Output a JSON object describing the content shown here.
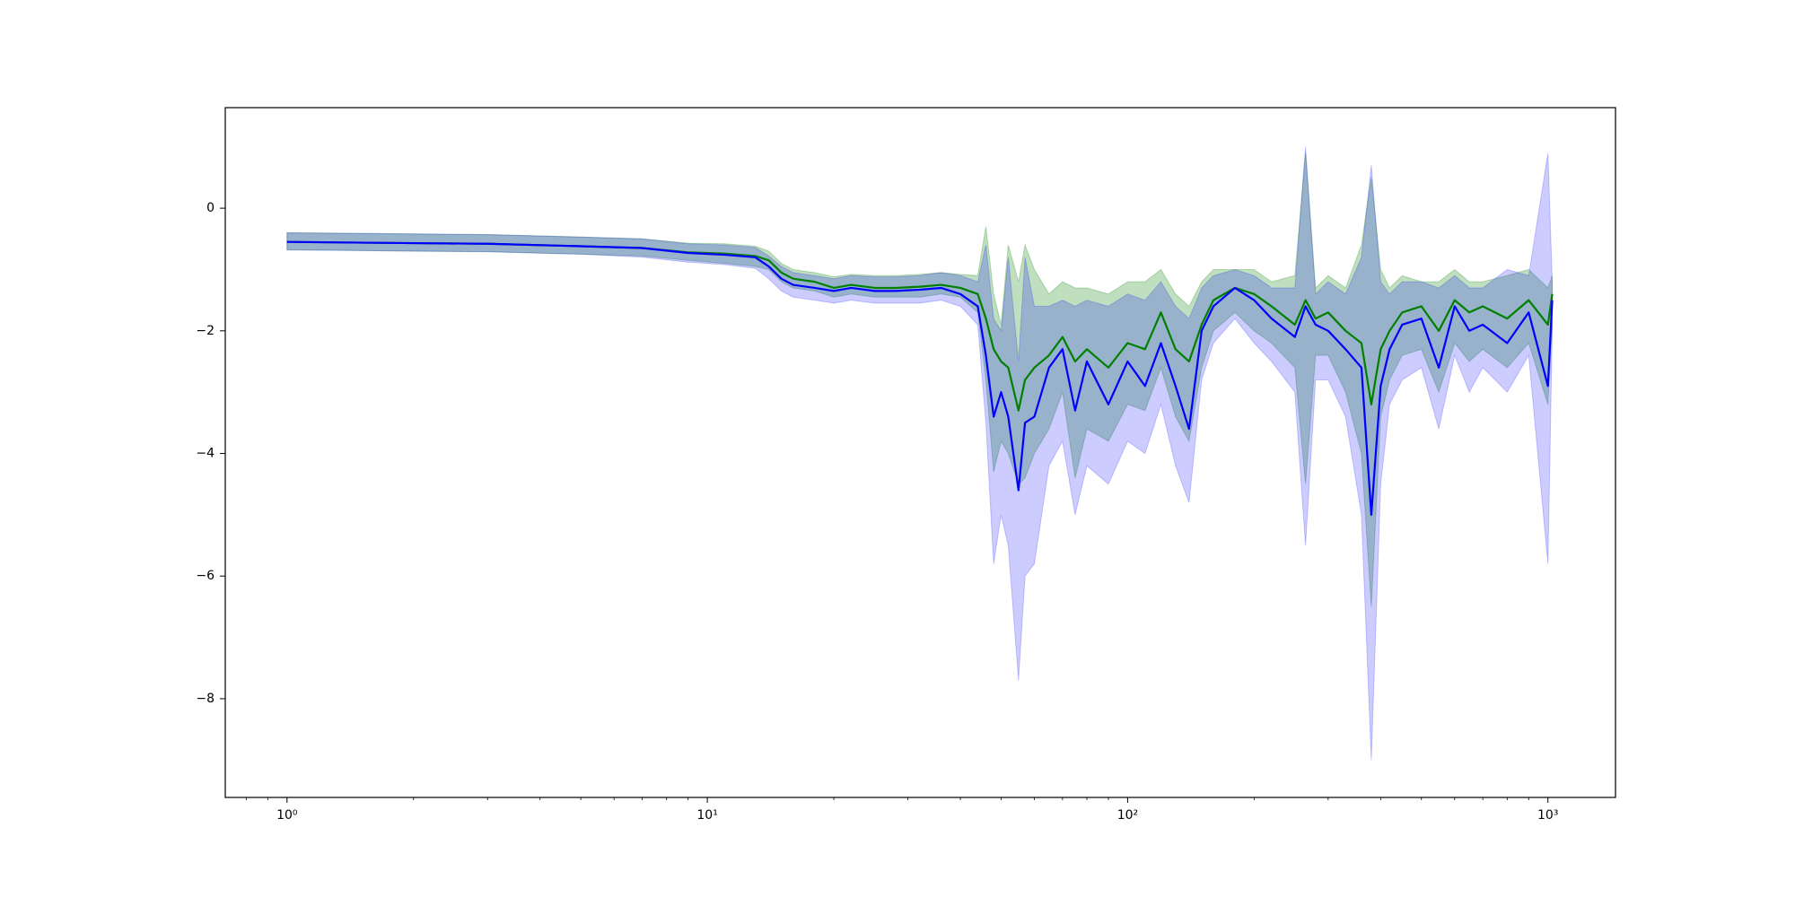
{
  "chart_data": {
    "type": "line",
    "xscale": "log",
    "grid": false,
    "xlim": [
      0.713,
      1448
    ],
    "ylim": [
      -9.61,
      1.64
    ],
    "xticks": [
      {
        "value": 1,
        "label": "10⁰"
      },
      {
        "value": 10,
        "label": "10¹"
      },
      {
        "value": 100,
        "label": "10²"
      },
      {
        "value": 1000,
        "label": "10³"
      }
    ],
    "xminorticks": [
      0.8,
      0.9,
      2,
      3,
      4,
      5,
      6,
      7,
      8,
      9,
      20,
      30,
      40,
      50,
      60,
      70,
      80,
      90,
      200,
      300,
      400,
      500,
      600,
      700,
      800,
      900
    ],
    "yticks": [
      0,
      {
        "value": -2,
        "label": "−2"
      },
      {
        "value": -4,
        "label": "−4"
      },
      {
        "value": -6,
        "label": "−6"
      },
      {
        "value": -8,
        "label": "−8"
      }
    ],
    "x": [
      1,
      2,
      3,
      5,
      7,
      9,
      11,
      13,
      14,
      15,
      16,
      18,
      20,
      22,
      25,
      28,
      32,
      36,
      40,
      44,
      46,
      48,
      50,
      52,
      55,
      57,
      60,
      65,
      70,
      75,
      80,
      90,
      100,
      110,
      120,
      130,
      140,
      150,
      160,
      180,
      200,
      220,
      250,
      265,
      280,
      300,
      330,
      360,
      380,
      400,
      420,
      450,
      500,
      550,
      600,
      650,
      700,
      800,
      900,
      1000,
      1024
    ],
    "series": [
      {
        "color": "#008000",
        "band_opacity": 0.25,
        "values": [
          -0.55,
          -0.57,
          -0.58,
          -0.62,
          -0.65,
          -0.72,
          -0.74,
          -0.78,
          -0.85,
          -1.05,
          -1.15,
          -1.2,
          -1.3,
          -1.25,
          -1.3,
          -1.3,
          -1.28,
          -1.25,
          -1.3,
          -1.4,
          -1.8,
          -2.3,
          -2.5,
          -2.6,
          -3.3,
          -2.8,
          -2.6,
          -2.4,
          -2.1,
          -2.5,
          -2.3,
          -2.6,
          -2.2,
          -2.3,
          -1.7,
          -2.3,
          -2.5,
          -1.9,
          -1.5,
          -1.3,
          -1.4,
          -1.6,
          -1.9,
          -1.5,
          -1.8,
          -1.7,
          -2.0,
          -2.2,
          -3.2,
          -2.3,
          -2.0,
          -1.7,
          -1.6,
          -2.0,
          -1.5,
          -1.7,
          -1.6,
          -1.8,
          -1.5,
          -1.9,
          -1.4
        ],
        "upper": [
          -0.4,
          -0.42,
          -0.43,
          -0.47,
          -0.5,
          -0.57,
          -0.58,
          -0.62,
          -0.7,
          -0.9,
          -1.0,
          -1.05,
          -1.12,
          -1.08,
          -1.1,
          -1.1,
          -1.08,
          -1.05,
          -1.08,
          -1.1,
          -0.3,
          -1.4,
          -1.9,
          -0.6,
          -1.2,
          -0.6,
          -1.0,
          -1.4,
          -1.2,
          -1.3,
          -1.3,
          -1.4,
          -1.2,
          -1.2,
          -1.0,
          -1.4,
          -1.6,
          -1.2,
          -1.0,
          -1.0,
          -1.0,
          -1.2,
          -1.1,
          0.9,
          -1.3,
          -1.1,
          -1.3,
          -0.6,
          0.5,
          -1.0,
          -1.3,
          -1.1,
          -1.2,
          -1.2,
          -1.0,
          -1.2,
          -1.2,
          -1.1,
          -1.0,
          -1.3,
          -1.1
        ],
        "lower": [
          -0.68,
          -0.7,
          -0.71,
          -0.75,
          -0.78,
          -0.85,
          -0.9,
          -0.95,
          -1.0,
          -1.2,
          -1.3,
          -1.35,
          -1.45,
          -1.4,
          -1.45,
          -1.45,
          -1.45,
          -1.4,
          -1.45,
          -1.7,
          -2.8,
          -4.3,
          -3.8,
          -4.0,
          -4.5,
          -4.4,
          -4.0,
          -3.6,
          -3.0,
          -4.4,
          -3.6,
          -3.8,
          -3.2,
          -3.3,
          -2.6,
          -3.4,
          -3.8,
          -2.6,
          -2.0,
          -1.7,
          -2.0,
          -2.2,
          -2.6,
          -4.5,
          -2.4,
          -2.4,
          -3.0,
          -4.0,
          -6.5,
          -3.4,
          -2.8,
          -2.4,
          -2.3,
          -3.0,
          -2.2,
          -2.5,
          -2.3,
          -2.6,
          -2.2,
          -3.2,
          -1.9
        ]
      },
      {
        "color": "#0000ff",
        "band_opacity": 0.2,
        "values": [
          -0.55,
          -0.57,
          -0.58,
          -0.62,
          -0.65,
          -0.73,
          -0.76,
          -0.8,
          -0.95,
          -1.15,
          -1.25,
          -1.3,
          -1.35,
          -1.3,
          -1.35,
          -1.35,
          -1.33,
          -1.3,
          -1.4,
          -1.6,
          -2.4,
          -3.4,
          -3.0,
          -3.4,
          -4.6,
          -3.5,
          -3.4,
          -2.6,
          -2.3,
          -3.3,
          -2.5,
          -3.2,
          -2.5,
          -2.9,
          -2.2,
          -2.9,
          -3.6,
          -2.0,
          -1.6,
          -1.3,
          -1.5,
          -1.8,
          -2.1,
          -1.6,
          -1.9,
          -2.0,
          -2.3,
          -2.6,
          -5.0,
          -2.9,
          -2.3,
          -1.9,
          -1.8,
          -2.6,
          -1.6,
          -2.0,
          -1.9,
          -2.2,
          -1.7,
          -2.9,
          -1.5
        ],
        "upper": [
          -0.4,
          -0.42,
          -0.43,
          -0.47,
          -0.5,
          -0.58,
          -0.6,
          -0.64,
          -0.78,
          -0.95,
          -1.05,
          -1.1,
          -1.15,
          -1.1,
          -1.12,
          -1.12,
          -1.1,
          -1.05,
          -1.1,
          -1.2,
          -0.6,
          -1.8,
          -2.0,
          -0.8,
          -2.5,
          -0.8,
          -1.6,
          -1.6,
          -1.5,
          -1.6,
          -1.5,
          -1.6,
          -1.4,
          -1.5,
          -1.2,
          -1.6,
          -1.8,
          -1.3,
          -1.1,
          -1.0,
          -1.1,
          -1.3,
          -1.3,
          1.0,
          -1.4,
          -1.2,
          -1.4,
          -0.8,
          0.7,
          -1.2,
          -1.4,
          -1.2,
          -1.2,
          -1.3,
          -1.1,
          -1.3,
          -1.3,
          -1.0,
          -1.1,
          0.9,
          -1.2
        ],
        "lower": [
          -0.68,
          -0.7,
          -0.71,
          -0.75,
          -0.8,
          -0.88,
          -0.92,
          -0.98,
          -1.15,
          -1.35,
          -1.45,
          -1.5,
          -1.55,
          -1.5,
          -1.55,
          -1.55,
          -1.55,
          -1.5,
          -1.6,
          -1.9,
          -3.5,
          -5.8,
          -5.0,
          -5.5,
          -7.7,
          -6.0,
          -5.8,
          -4.2,
          -3.8,
          -5.0,
          -4.2,
          -4.5,
          -3.8,
          -4.0,
          -3.2,
          -4.2,
          -4.8,
          -2.8,
          -2.2,
          -1.8,
          -2.2,
          -2.5,
          -3.0,
          -5.5,
          -2.8,
          -2.8,
          -3.4,
          -5.0,
          -9.0,
          -4.5,
          -3.2,
          -2.8,
          -2.6,
          -3.6,
          -2.4,
          -3.0,
          -2.6,
          -3.0,
          -2.4,
          -5.8,
          -2.0
        ]
      }
    ]
  }
}
